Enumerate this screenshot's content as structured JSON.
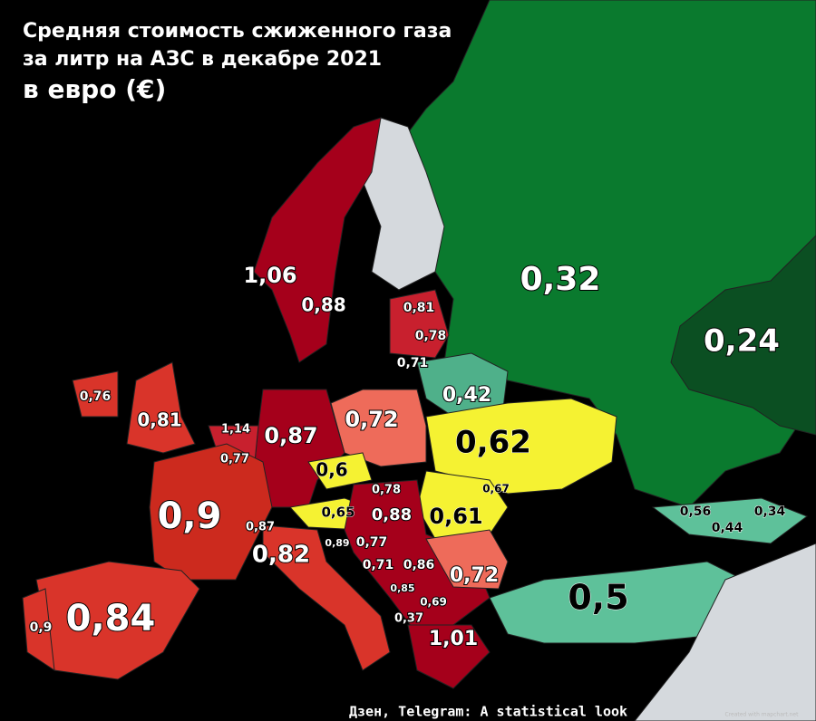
{
  "title": {
    "line1": "Средняя стоимость сжиженного газа",
    "line2": "за литр на АЗС в декабре 2021",
    "line3": "в евро (€)"
  },
  "labels": [
    "1,06",
    "0,88",
    "0,81",
    "0,78",
    "0,71",
    "0,42",
    "0,32",
    "0,24",
    "0,76",
    "0,81",
    "1,14",
    "0,87",
    "0,77",
    "0,72",
    "0,62",
    "0,6",
    "0,78",
    "0,67",
    "0,65",
    "0,88",
    "0,61",
    "0,56",
    "0,44",
    "0,34",
    "0,9",
    "0,87",
    "0,89",
    "0,77",
    "0,82",
    "0,71",
    "0,86",
    "0,72",
    "0,85",
    "0,69",
    "0,5",
    "0,84",
    "0,9",
    "0,37",
    "1,01"
  ],
  "source": "Дзен, Telegram: A statistical look",
  "credit": "Created with mapchart.net"
}
